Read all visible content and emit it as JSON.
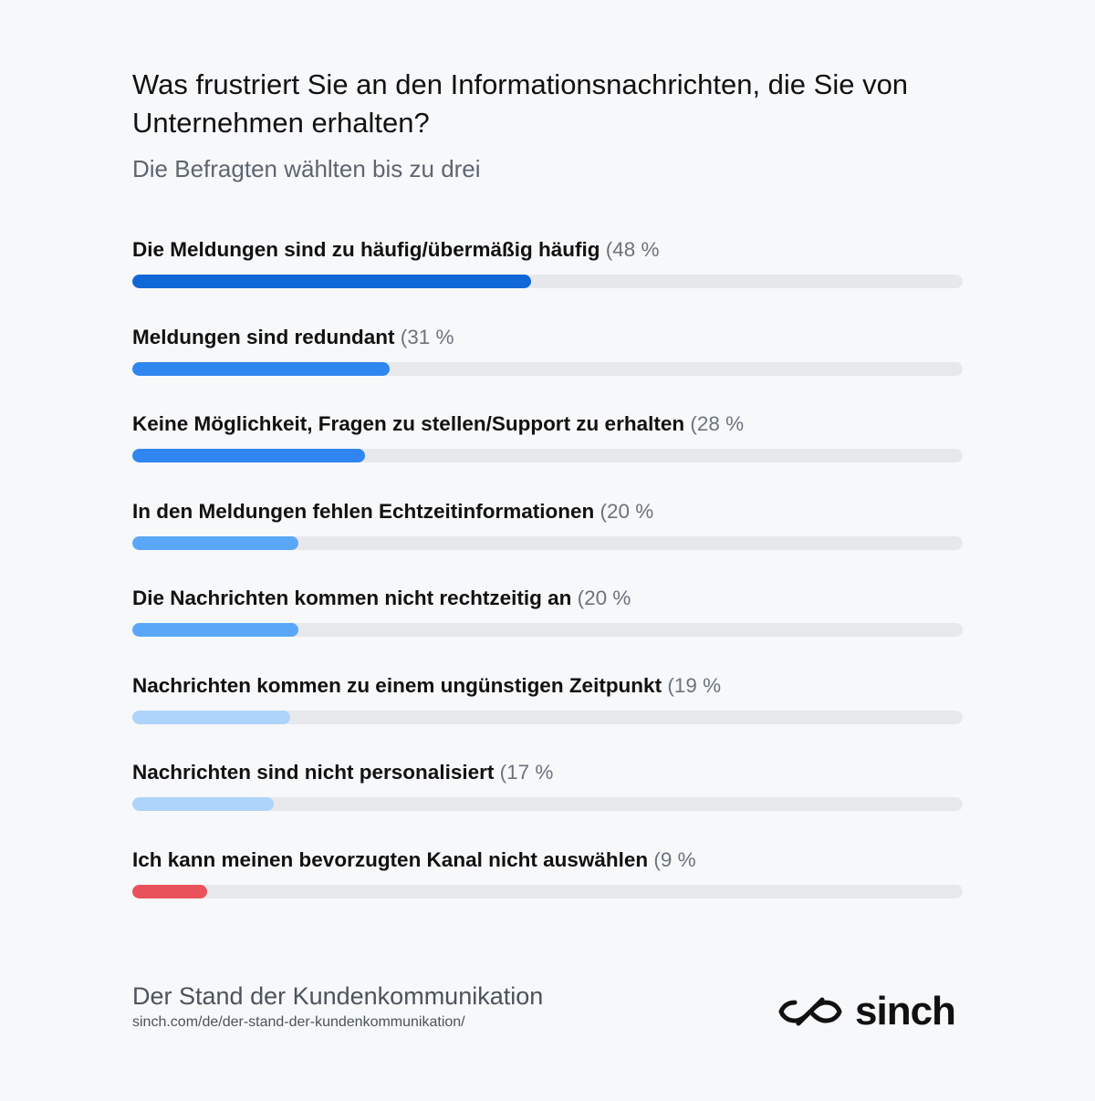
{
  "title": "Was frustriert Sie an den Informationsnachrichten, die Sie von Unternehmen erhalten?",
  "subtitle": "Die Befragten wählten bis zu drei",
  "chart_data": {
    "type": "bar",
    "orientation": "horizontal",
    "xlim": [
      0,
      100
    ],
    "categories": [
      "Die Meldungen sind zu häufig/übermäßig häufig",
      "Meldungen sind redundant",
      "Keine Möglichkeit, Fragen zu stellen/Support zu erhalten",
      "In den Meldungen fehlen Echtzeitinformationen",
      "Die Nachrichten kommen nicht rechtzeitig an",
      "Nachrichten kommen zu einem ungünstigen Zeitpunkt",
      "Nachrichten sind nicht personalisiert",
      "Ich kann meinen bevorzugten Kanal nicht auswählen"
    ],
    "values": [
      48,
      31,
      28,
      20,
      20,
      19,
      17,
      9
    ],
    "value_labels": [
      "(48 %",
      "(31 %",
      "(28 %",
      "(20 %",
      "(20 %",
      "(19 %",
      "(17 %",
      "(9 %"
    ],
    "colors": [
      "#1068d6",
      "#2f86f0",
      "#2f86f0",
      "#5aa7f7",
      "#5aa7f7",
      "#aed4fb",
      "#aed4fb",
      "#e9525a"
    ],
    "track_color": "#e6e8ec",
    "grid": false,
    "legend": "none"
  },
  "footer": {
    "source_title": "Der Stand der Kundenkommunikation",
    "source_url": "sinch.com/de/der-stand-der-kundenkommunikation/"
  },
  "logo": {
    "wordmark": "sinch",
    "icon": "sinch-infinity-icon"
  }
}
